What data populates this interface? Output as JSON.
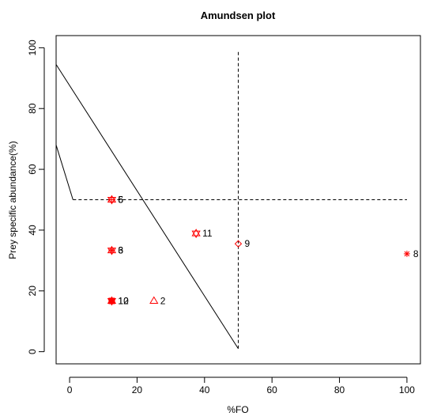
{
  "chart_data": {
    "type": "scatter",
    "title": "Amundsen plot",
    "xlabel": "%FO",
    "ylabel": "Prey specific abundance(%)",
    "xlim": [
      -4,
      104
    ],
    "ylim": [
      -4,
      104
    ],
    "x_ticks": [
      0,
      20,
      40,
      60,
      80,
      100
    ],
    "y_ticks": [
      0,
      20,
      40,
      60,
      80,
      100
    ],
    "grid": false,
    "marker_color": "#ff0000",
    "points": [
      {
        "label": "2",
        "x": 25,
        "y": 16.7,
        "marker": "triangle-up"
      },
      {
        "label": "12",
        "x": 12.5,
        "y": 16.7,
        "marker": "filled-square"
      },
      {
        "label": "10",
        "x": 12.5,
        "y": 16.7,
        "marker": "star-hexagram"
      },
      {
        "label": "3",
        "x": 12.5,
        "y": 33.3,
        "marker": "asterisk"
      },
      {
        "label": "6",
        "x": 12.5,
        "y": 33.3,
        "marker": "hexagram"
      },
      {
        "label": "5",
        "x": 12.5,
        "y": 50,
        "marker": "diamond-plus"
      },
      {
        "label": "6",
        "x": 12.5,
        "y": 50,
        "marker": "hexagram"
      },
      {
        "label": "11",
        "x": 37.5,
        "y": 38.9,
        "marker": "hexagram"
      },
      {
        "label": "9",
        "x": 50,
        "y": 35.5,
        "marker": "diamond"
      },
      {
        "label": "8",
        "x": 100,
        "y": 32.2,
        "marker": "asterisk"
      }
    ],
    "reference_lines": [
      {
        "type": "dashed",
        "from": [
          50,
          1
        ],
        "to": [
          50,
          99
        ]
      },
      {
        "type": "dashed",
        "from": [
          1,
          50
        ],
        "to": [
          100,
          50
        ]
      },
      {
        "type": "solid",
        "from": [
          -4,
          94.5
        ],
        "to": [
          50,
          1
        ]
      },
      {
        "type": "solid",
        "from": [
          -4,
          68
        ],
        "to": [
          1,
          50
        ]
      }
    ]
  }
}
